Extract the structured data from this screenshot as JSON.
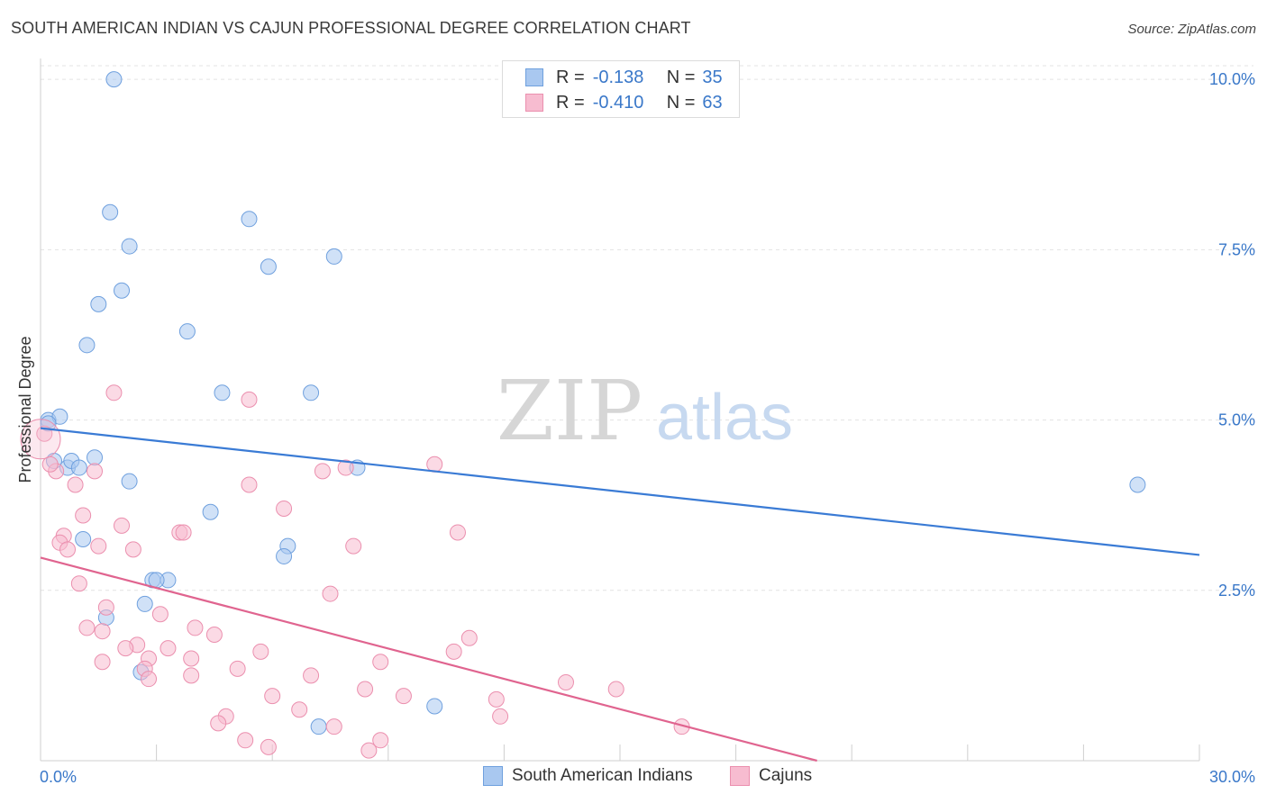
{
  "header": {
    "title": "SOUTH AMERICAN INDIAN VS CAJUN PROFESSIONAL DEGREE CORRELATION CHART",
    "source": "Source: ZipAtlas.com"
  },
  "stats": [
    {
      "r_label": "R =",
      "r_value": "-0.138",
      "n_label": "N =",
      "n_value": "35",
      "color": "#a9c8f0",
      "border": "#6fa0de"
    },
    {
      "r_label": "R =",
      "r_value": "-0.410",
      "n_label": "N =",
      "n_value": "63",
      "color": "#f7bcd0",
      "border": "#eb8fae"
    }
  ],
  "watermark": {
    "zip": "ZIP",
    "atlas": "atlas"
  },
  "legend": [
    {
      "label": "South American Indians",
      "color": "#a9c8f0",
      "border": "#6fa0de"
    },
    {
      "label": "Cajuns",
      "color": "#f7bcd0",
      "border": "#eb8fae"
    }
  ],
  "chart_data": {
    "type": "scatter",
    "title": "SOUTH AMERICAN INDIAN VS CAJUN PROFESSIONAL DEGREE CORRELATION CHART",
    "xlabel": "",
    "ylabel": "Professional Degree",
    "xlim": [
      0,
      30
    ],
    "ylim": [
      0,
      10.2
    ],
    "x_tick_labels": [
      "0.0%",
      "30.0%"
    ],
    "y_ticks": [
      2.5,
      5.0,
      7.5,
      10.0
    ],
    "y_tick_labels": [
      "2.5%",
      "5.0%",
      "7.5%",
      "10.0%"
    ],
    "grid": true,
    "legend_placement": "bottom-center",
    "series": [
      {
        "name": "South American Indians",
        "color": "#6fa0de",
        "fill": "#a9c8f0",
        "trend_color": "#3a7bd5",
        "trend": [
          [
            0,
            4.88
          ],
          [
            30,
            3.02
          ]
        ],
        "points": [
          [
            1.9,
            10.0
          ],
          [
            1.8,
            8.05
          ],
          [
            5.4,
            7.95
          ],
          [
            2.3,
            7.55
          ],
          [
            7.6,
            7.4
          ],
          [
            5.9,
            7.25
          ],
          [
            2.1,
            6.9
          ],
          [
            1.5,
            6.7
          ],
          [
            1.2,
            6.1
          ],
          [
            3.8,
            6.3
          ],
          [
            4.7,
            5.4
          ],
          [
            7.0,
            5.4
          ],
          [
            0.2,
            5.0
          ],
          [
            0.5,
            5.05
          ],
          [
            0.2,
            4.95
          ],
          [
            0.35,
            4.4
          ],
          [
            0.7,
            4.3
          ],
          [
            0.8,
            4.4
          ],
          [
            1.4,
            4.45
          ],
          [
            1.0,
            4.3
          ],
          [
            2.3,
            4.1
          ],
          [
            8.2,
            4.3
          ],
          [
            28.4,
            4.05
          ],
          [
            4.4,
            3.65
          ],
          [
            1.1,
            3.25
          ],
          [
            6.4,
            3.15
          ],
          [
            6.3,
            3.0
          ],
          [
            2.9,
            2.65
          ],
          [
            3.3,
            2.65
          ],
          [
            3.0,
            2.65
          ],
          [
            2.7,
            2.3
          ],
          [
            1.7,
            2.1
          ],
          [
            2.6,
            1.3
          ],
          [
            10.2,
            0.8
          ],
          [
            7.2,
            0.5
          ]
        ]
      },
      {
        "name": "Cajuns",
        "color": "#eb8fae",
        "fill": "#f7bcd0",
        "trend_color": "#e0648f",
        "trend": [
          [
            0,
            2.98
          ],
          [
            20.1,
            0.0
          ]
        ],
        "points": [
          [
            0.1,
            4.8
          ],
          [
            0.4,
            4.25
          ],
          [
            0.25,
            4.35
          ],
          [
            1.4,
            4.25
          ],
          [
            0.9,
            4.05
          ],
          [
            1.9,
            5.4
          ],
          [
            5.4,
            5.3
          ],
          [
            5.4,
            4.05
          ],
          [
            7.3,
            4.25
          ],
          [
            7.9,
            4.3
          ],
          [
            10.2,
            4.35
          ],
          [
            6.3,
            3.7
          ],
          [
            1.1,
            3.6
          ],
          [
            2.1,
            3.45
          ],
          [
            3.6,
            3.35
          ],
          [
            3.7,
            3.35
          ],
          [
            10.8,
            3.35
          ],
          [
            0.6,
            3.3
          ],
          [
            0.5,
            3.2
          ],
          [
            1.5,
            3.15
          ],
          [
            2.4,
            3.1
          ],
          [
            8.1,
            3.15
          ],
          [
            0.7,
            3.1
          ],
          [
            1.0,
            2.6
          ],
          [
            7.5,
            2.45
          ],
          [
            1.7,
            2.25
          ],
          [
            3.1,
            2.15
          ],
          [
            1.2,
            1.95
          ],
          [
            4.0,
            1.95
          ],
          [
            4.5,
            1.85
          ],
          [
            2.5,
            1.7
          ],
          [
            1.6,
            1.9
          ],
          [
            2.2,
            1.65
          ],
          [
            3.3,
            1.65
          ],
          [
            5.7,
            1.6
          ],
          [
            10.7,
            1.6
          ],
          [
            11.1,
            1.8
          ],
          [
            3.9,
            1.5
          ],
          [
            1.6,
            1.45
          ],
          [
            2.8,
            1.5
          ],
          [
            5.1,
            1.35
          ],
          [
            8.8,
            1.45
          ],
          [
            2.7,
            1.35
          ],
          [
            2.8,
            1.2
          ],
          [
            3.9,
            1.25
          ],
          [
            7.0,
            1.25
          ],
          [
            13.6,
            1.15
          ],
          [
            8.4,
            1.05
          ],
          [
            14.9,
            1.05
          ],
          [
            6.0,
            0.95
          ],
          [
            9.4,
            0.95
          ],
          [
            11.8,
            0.9
          ],
          [
            6.7,
            0.75
          ],
          [
            11.9,
            0.65
          ],
          [
            4.8,
            0.65
          ],
          [
            4.6,
            0.55
          ],
          [
            7.6,
            0.5
          ],
          [
            16.6,
            0.5
          ],
          [
            5.3,
            0.3
          ],
          [
            8.8,
            0.3
          ],
          [
            5.9,
            0.2
          ],
          [
            8.5,
            0.15
          ],
          [
            0.0,
            4.72
          ]
        ]
      }
    ]
  }
}
